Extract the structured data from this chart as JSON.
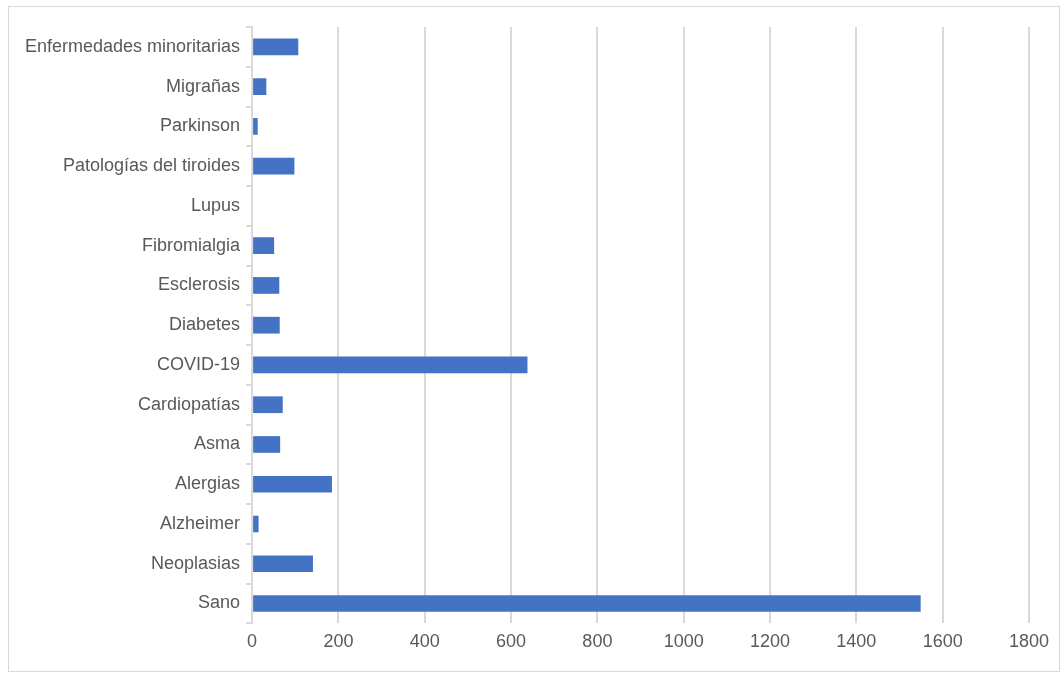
{
  "chart_data": {
    "type": "bar",
    "orientation": "horizontal",
    "categories": [
      "Enfermedades minoritarias",
      "Migrañas",
      "Parkinson",
      "Patologías del tiroides",
      "Lupus",
      "Fibromialgia",
      "Esclerosis",
      "Diabetes",
      "COVID-19",
      "Cardiopatías",
      "Asma",
      "Alergias",
      "Alzheimer",
      "Neoplasias",
      "Sano"
    ],
    "values": [
      107,
      33,
      13,
      98,
      0,
      51,
      63,
      64,
      638,
      71,
      65,
      185,
      15,
      141,
      1549
    ],
    "color": "#4472c4",
    "xlim": [
      0,
      1800
    ],
    "xticks": [
      0,
      200,
      400,
      600,
      800,
      1000,
      1200,
      1400,
      1600,
      1800
    ],
    "grid": "x",
    "legend": false
  }
}
